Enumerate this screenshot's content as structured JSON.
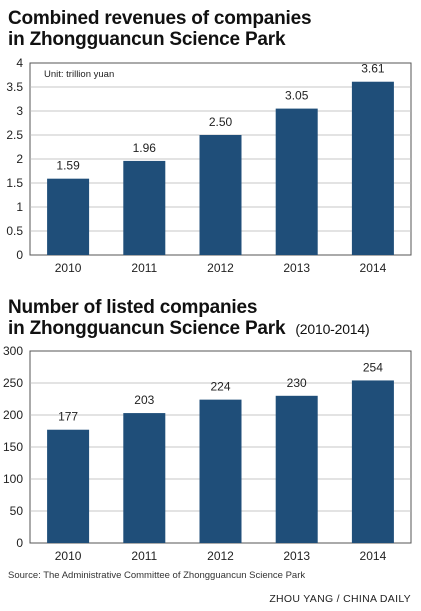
{
  "chart_data": [
    {
      "type": "bar",
      "title_line1": "Combined revenues of companies",
      "title_line2": "in Zhongguancun Science Park",
      "unit_note": "Unit: trillion yuan",
      "categories": [
        "2010",
        "2011",
        "2012",
        "2013",
        "2014"
      ],
      "values": [
        1.59,
        1.96,
        2.5,
        3.05,
        3.61
      ],
      "value_labels": [
        "1.59",
        "1.96",
        "2.50",
        "3.05",
        "3.61"
      ],
      "ylim": [
        0,
        4
      ],
      "yticks": [
        0,
        0.5,
        1,
        1.5,
        2,
        2.5,
        3,
        3.5,
        4
      ],
      "ytick_labels": [
        "0",
        "0.5",
        "1",
        "1.5",
        "2",
        "2.5",
        "3",
        "3.5",
        "4"
      ],
      "xlabel": "",
      "ylabel": "",
      "bar_color": "#1f4e79",
      "grid": true
    },
    {
      "type": "bar",
      "title_line1": "Number of listed companies",
      "title_line2": "in Zhongguancun Science Park",
      "subtitle": "(2010-2014)",
      "categories": [
        "2010",
        "2011",
        "2012",
        "2013",
        "2014"
      ],
      "values": [
        177,
        203,
        224,
        230,
        254
      ],
      "value_labels": [
        "177",
        "203",
        "224",
        "230",
        "254"
      ],
      "ylim": [
        0,
        300
      ],
      "yticks": [
        0,
        50,
        100,
        150,
        200,
        250,
        300
      ],
      "ytick_labels": [
        "0",
        "50",
        "100",
        "150",
        "200",
        "250",
        "300"
      ],
      "xlabel": "",
      "ylabel": "",
      "bar_color": "#1f4e79",
      "grid": true
    }
  ],
  "source": "Source: The Administrative Committee of Zhongguancun Science Park",
  "credit": "ZHOU YANG / CHINA DAILY"
}
